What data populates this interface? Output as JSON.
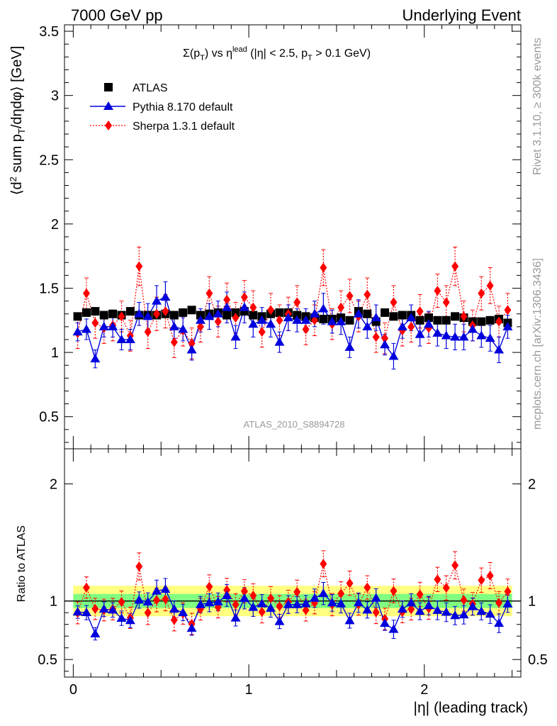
{
  "header": {
    "left_title": "7000 GeV pp",
    "right_title": "Underlying Event"
  },
  "side_labels": {
    "rivet": "Rivet 3.1.10, ≥ 300k events",
    "mcplots": "mcplots.cern.ch [arXiv:1306.3436]"
  },
  "analysis_label": "ATLAS_2010_S8894728",
  "chart_data": {
    "type": "scatter",
    "title_parts": {
      "sigma": "Σ(p",
      "sub_T": "T",
      "vs": ") vs η",
      "sup_lead": "lead",
      "cut_a": " (|η| < 2.5, p",
      "sub_T2": "T",
      "cut_b": " > 0.1 GeV)"
    },
    "ylabel_parts": {
      "open": "⟨d",
      "sup2": "2",
      "mid": " sum p",
      "subT": "T",
      "end": "/dηdφ⟩ [GeV]"
    },
    "xlabel": "|η| (leading track)",
    "ratio_ylabel": "Ratio to ATLAS",
    "xlim": [
      -0.05,
      2.55
    ],
    "ylim_main": [
      0.25,
      3.55
    ],
    "ylim_ratio": [
      0.35,
      2.3
    ],
    "main_yticks": [
      0.5,
      1,
      1.5,
      2,
      2.5,
      3,
      3.5
    ],
    "main_ytick_labels": [
      "0.5",
      "1",
      "1.5",
      "2",
      "2.5",
      "3",
      "3.5"
    ],
    "ratio_yticks": [
      0.5,
      1,
      2
    ],
    "ratio_ytick_labels": [
      "0.5",
      "1",
      "2"
    ],
    "xticks": [
      0,
      1,
      2
    ],
    "xtick_labels": [
      "0",
      "1",
      "2"
    ],
    "legend_position": "top-left",
    "x": [
      0.025,
      0.075,
      0.125,
      0.175,
      0.225,
      0.275,
      0.325,
      0.375,
      0.425,
      0.475,
      0.525,
      0.575,
      0.625,
      0.675,
      0.725,
      0.775,
      0.825,
      0.875,
      0.925,
      0.975,
      1.025,
      1.075,
      1.125,
      1.175,
      1.225,
      1.275,
      1.325,
      1.375,
      1.425,
      1.475,
      1.525,
      1.575,
      1.625,
      1.675,
      1.725,
      1.775,
      1.825,
      1.875,
      1.925,
      1.975,
      2.025,
      2.075,
      2.125,
      2.175,
      2.225,
      2.275,
      2.325,
      2.375,
      2.425,
      2.475
    ],
    "series": [
      {
        "name": "ATLAS",
        "color": "#000000",
        "marker": "square",
        "values": [
          1.28,
          1.31,
          1.32,
          1.29,
          1.3,
          1.29,
          1.32,
          1.29,
          1.29,
          1.29,
          1.3,
          1.29,
          1.31,
          1.33,
          1.29,
          1.3,
          1.31,
          1.29,
          1.31,
          1.32,
          1.29,
          1.28,
          1.3,
          1.31,
          1.31,
          1.29,
          1.28,
          1.27,
          1.26,
          1.26,
          1.27,
          1.25,
          1.32,
          1.3,
          1.24,
          1.31,
          1.28,
          1.29,
          1.29,
          1.25,
          1.27,
          1.25,
          1.25,
          1.28,
          1.27,
          1.24,
          1.24,
          1.25,
          1.26,
          1.23
        ],
        "errors": [
          0.02,
          0.02,
          0.02,
          0.02,
          0.02,
          0.02,
          0.02,
          0.02,
          0.02,
          0.02,
          0.02,
          0.02,
          0.02,
          0.02,
          0.02,
          0.02,
          0.02,
          0.02,
          0.02,
          0.02,
          0.02,
          0.02,
          0.02,
          0.02,
          0.02,
          0.02,
          0.02,
          0.02,
          0.02,
          0.02,
          0.02,
          0.02,
          0.02,
          0.02,
          0.02,
          0.02,
          0.02,
          0.02,
          0.02,
          0.02,
          0.02,
          0.02,
          0.02,
          0.02,
          0.02,
          0.02,
          0.02,
          0.02,
          0.02,
          0.02
        ]
      },
      {
        "name": "Pythia 8.170 default",
        "color": "#0000dd",
        "marker": "triangle",
        "line": "solid",
        "values": [
          1.16,
          1.18,
          0.95,
          1.2,
          1.2,
          1.1,
          1.1,
          1.3,
          1.28,
          1.4,
          1.43,
          1.2,
          1.18,
          1.02,
          1.25,
          1.28,
          1.3,
          1.35,
          1.12,
          1.35,
          1.22,
          1.25,
          1.22,
          1.08,
          1.27,
          1.25,
          1.25,
          1.3,
          1.34,
          1.24,
          1.24,
          1.04,
          1.3,
          1.2,
          1.27,
          1.06,
          0.97,
          1.2,
          1.27,
          1.14,
          1.22,
          1.15,
          1.13,
          1.12,
          1.12,
          1.18,
          1.13,
          1.11,
          1.02,
          1.2
        ],
        "errors": [
          0.07,
          0.08,
          0.07,
          0.08,
          0.08,
          0.08,
          0.08,
          0.09,
          0.1,
          0.12,
          0.12,
          0.09,
          0.09,
          0.08,
          0.09,
          0.1,
          0.1,
          0.12,
          0.09,
          0.12,
          0.1,
          0.1,
          0.1,
          0.08,
          0.1,
          0.09,
          0.09,
          0.1,
          0.12,
          0.09,
          0.1,
          0.08,
          0.11,
          0.09,
          0.1,
          0.08,
          0.1,
          0.09,
          0.1,
          0.09,
          0.1,
          0.1,
          0.1,
          0.1,
          0.1,
          0.09,
          0.09,
          0.1,
          0.1,
          0.09
        ]
      },
      {
        "name": "Sherpa 1.3.1 default",
        "color": "#ff0000",
        "marker": "diamond",
        "line": "dotted",
        "values": [
          1.15,
          1.46,
          1.23,
          1.19,
          1.21,
          1.28,
          1.13,
          1.67,
          1.16,
          1.3,
          1.32,
          1.08,
          1.17,
          1.07,
          1.2,
          1.46,
          1.24,
          1.41,
          1.27,
          1.43,
          1.35,
          1.16,
          1.33,
          1.25,
          1.3,
          1.39,
          1.18,
          1.25,
          1.66,
          1.22,
          1.35,
          1.44,
          1.28,
          1.45,
          1.12,
          1.11,
          1.39,
          1.17,
          1.2,
          1.32,
          1.19,
          1.48,
          1.39,
          1.67,
          1.28,
          1.21,
          1.46,
          1.52,
          1.24,
          1.33
        ],
        "errors": [
          0.12,
          0.12,
          0.12,
          0.12,
          0.12,
          0.12,
          0.12,
          0.15,
          0.13,
          0.13,
          0.13,
          0.12,
          0.12,
          0.12,
          0.12,
          0.13,
          0.12,
          0.13,
          0.12,
          0.13,
          0.13,
          0.12,
          0.13,
          0.12,
          0.13,
          0.13,
          0.12,
          0.12,
          0.14,
          0.12,
          0.13,
          0.13,
          0.12,
          0.13,
          0.12,
          0.12,
          0.13,
          0.12,
          0.12,
          0.13,
          0.12,
          0.13,
          0.13,
          0.15,
          0.12,
          0.12,
          0.13,
          0.14,
          0.12,
          0.13
        ]
      }
    ]
  },
  "colors": {
    "band_yellow": "#ffff80",
    "band_green": "#80ff80",
    "ref_line": "#000000",
    "faint_text": "#999999"
  }
}
